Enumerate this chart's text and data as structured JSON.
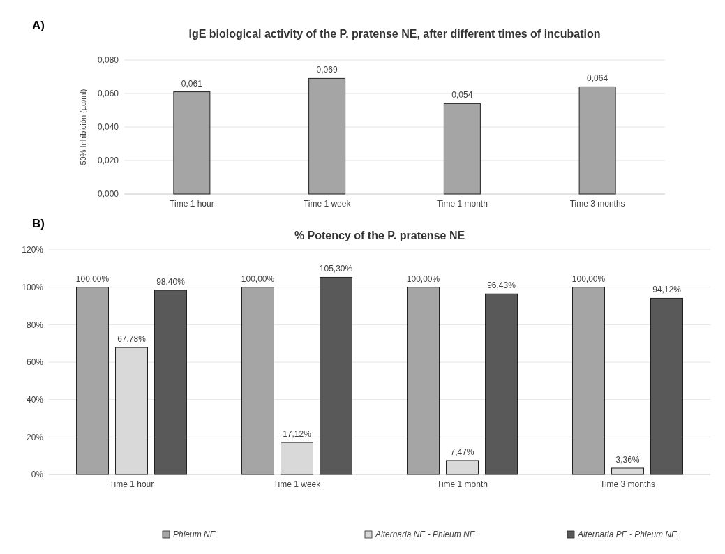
{
  "chart_data": [
    {
      "type": "bar",
      "title": "IgE biological activity of the P. pratense NE, after different times of incubation",
      "ylabel": "50% Inhibición (µg/ml)",
      "annotations": [
        "A)"
      ],
      "categories": [
        "Time 1 hour",
        "Time 1 week",
        "Time 1 month",
        "Time 3 months"
      ],
      "values": [
        0.061,
        0.069,
        0.054,
        0.064
      ],
      "value_labels": [
        "0,061",
        "0,069",
        "0,054",
        "0,064"
      ],
      "color": "#a5a5a5",
      "ylim": [
        0,
        0.08
      ],
      "yticks": [
        {
          "value": 0,
          "label": "0,000"
        },
        {
          "value": 0.02,
          "label": "0,020"
        },
        {
          "value": 0.04,
          "label": "0,040"
        },
        {
          "value": 0.06,
          "label": "0,060"
        },
        {
          "value": 0.08,
          "label": "0,080"
        }
      ],
      "grid": "y",
      "legend": false
    },
    {
      "type": "bar",
      "title": "% Potency of the P. pratense NE",
      "annotations": [
        "B)"
      ],
      "categories": [
        "Time 1 hour",
        "Time 1 week",
        "Time 1 month",
        "Time 3 months"
      ],
      "series": [
        {
          "name": "Phleum NE",
          "color": "#a5a5a5",
          "values": [
            100,
            100,
            100,
            100
          ],
          "value_labels": [
            "100,00%",
            "100,00%",
            "100,00%",
            "100,00%"
          ]
        },
        {
          "name": "Alternaria NE - Phleum NE",
          "color": "#d9d9d9",
          "values": [
            67.78,
            17.12,
            7.47,
            3.36
          ],
          "value_labels": [
            "67,78%",
            "17,12%",
            "7,47%",
            "3,36%"
          ]
        },
        {
          "name": "Alternaria PE - Phleum NE",
          "color": "#595959",
          "values": [
            98.4,
            105.3,
            96.43,
            94.12
          ],
          "value_labels": [
            "98,40%",
            "105,30%",
            "96,43%",
            "94,12%"
          ]
        }
      ],
      "ylim": [
        0,
        120
      ],
      "yticks": [
        {
          "value": 0,
          "label": "0%"
        },
        {
          "value": 20,
          "label": "20%"
        },
        {
          "value": 40,
          "label": "40%"
        },
        {
          "value": 60,
          "label": "60%"
        },
        {
          "value": 80,
          "label": "80%"
        },
        {
          "value": 100,
          "label": "100%"
        },
        {
          "value": 120,
          "label": "120%"
        }
      ],
      "grid": "y",
      "legend": "bottom"
    }
  ]
}
